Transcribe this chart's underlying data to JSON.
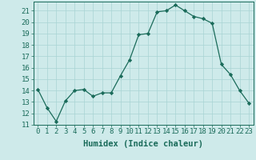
{
  "x": [
    0,
    1,
    2,
    3,
    4,
    5,
    6,
    7,
    8,
    9,
    10,
    11,
    12,
    13,
    14,
    15,
    16,
    17,
    18,
    19,
    20,
    21,
    22,
    23
  ],
  "y": [
    14.1,
    12.5,
    11.3,
    13.1,
    14.0,
    14.1,
    13.5,
    13.8,
    13.8,
    15.3,
    16.7,
    18.9,
    19.0,
    20.9,
    21.0,
    21.5,
    21.0,
    20.5,
    20.3,
    19.9,
    16.3,
    15.4,
    14.0,
    12.9
  ],
  "ylim": [
    11,
    21.8
  ],
  "xlim": [
    -0.5,
    23.5
  ],
  "yticks": [
    11,
    12,
    13,
    14,
    15,
    16,
    17,
    18,
    19,
    20,
    21
  ],
  "xticks": [
    0,
    1,
    2,
    3,
    4,
    5,
    6,
    7,
    8,
    9,
    10,
    11,
    12,
    13,
    14,
    15,
    16,
    17,
    18,
    19,
    20,
    21,
    22,
    23
  ],
  "xlabel": "Humidex (Indice chaleur)",
  "line_color": "#1a6b5a",
  "marker": "D",
  "marker_size": 2.2,
  "bg_color": "#ceeaea",
  "grid_color": "#a8d4d4",
  "tick_fontsize": 6.5,
  "xlabel_fontsize": 7.5,
  "lw": 0.9
}
